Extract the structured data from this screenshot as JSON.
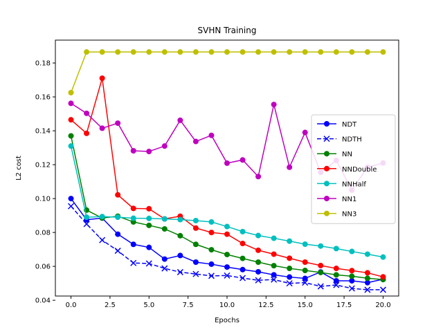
{
  "chart_data": {
    "type": "line",
    "title": "SVHN Training",
    "xlabel": "Epochs",
    "ylabel": "L2 cost",
    "xlim": [
      -1,
      21
    ],
    "ylim": [
      0.0425,
      0.1935
    ],
    "xticks": [
      0,
      2.5,
      5,
      7.5,
      10,
      12.5,
      15,
      17.5,
      20
    ],
    "xtick_labels": [
      "0.0",
      "2.5",
      "5.0",
      "7.5",
      "10.0",
      "12.5",
      "15.0",
      "17.5",
      "20.0"
    ],
    "yticks": [
      0.04,
      0.06,
      0.08,
      0.1,
      0.12,
      0.14,
      0.16,
      0.18
    ],
    "ytick_labels": [
      "0.04",
      "0.06",
      "0.08",
      "0.10",
      "0.12",
      "0.14",
      "0.16",
      "0.18"
    ],
    "legend_position": "center-right",
    "grid": false,
    "x": [
      0,
      1,
      2,
      3,
      4,
      5,
      6,
      7,
      8,
      9,
      10,
      11,
      12,
      13,
      14,
      15,
      16,
      17,
      18,
      19,
      20
    ],
    "series": [
      {
        "name": "NDT",
        "color": "#0000ff",
        "marker": "circle",
        "dashed": false,
        "values": [
          0.1,
          0.0875,
          0.0885,
          0.079,
          0.073,
          0.0712,
          0.0643,
          0.0664,
          0.0625,
          0.0613,
          0.0596,
          0.0581,
          0.0568,
          0.055,
          0.0537,
          0.0529,
          0.0567,
          0.0515,
          0.0515,
          0.0504,
          0.0524
        ]
      },
      {
        "name": "NDTH",
        "color": "#0000ff",
        "marker": "x",
        "dashed": true,
        "values": [
          0.0955,
          0.085,
          0.0755,
          0.0692,
          0.062,
          0.0617,
          0.0588,
          0.0566,
          0.0555,
          0.0544,
          0.0546,
          0.0531,
          0.0518,
          0.0522,
          0.05,
          0.0504,
          0.0482,
          0.049,
          0.047,
          0.0462,
          0.0462
        ]
      },
      {
        "name": "NN",
        "color": "#008000",
        "marker": "circle",
        "dashed": false,
        "values": [
          0.137,
          0.0932,
          0.0885,
          0.0896,
          0.0862,
          0.0842,
          0.0821,
          0.0781,
          0.073,
          0.0698,
          0.067,
          0.0647,
          0.0625,
          0.0604,
          0.0588,
          0.0576,
          0.0564,
          0.055,
          0.0542,
          0.053,
          0.0522
        ]
      },
      {
        "name": "NNDouble",
        "color": "#ff0000",
        "marker": "circle",
        "dashed": false,
        "values": [
          0.1465,
          0.1385,
          0.171,
          0.1022,
          0.0942,
          0.094,
          0.088,
          0.0896,
          0.0826,
          0.08,
          0.079,
          0.0735,
          0.0695,
          0.0672,
          0.0648,
          0.0625,
          0.0605,
          0.0588,
          0.0575,
          0.0562,
          0.0538
        ]
      },
      {
        "name": "NNHalf",
        "color": "#00bfbf",
        "marker": "circle",
        "dashed": false,
        "values": [
          0.131,
          0.089,
          0.0894,
          0.089,
          0.0884,
          0.0883,
          0.088,
          0.0876,
          0.087,
          0.0862,
          0.0835,
          0.0805,
          0.0782,
          0.0766,
          0.0749,
          0.0731,
          0.072,
          0.0705,
          0.0688,
          0.0672,
          0.0655
        ]
      },
      {
        "name": "NN1",
        "color": "#bf00bf",
        "marker": "circle",
        "dashed": false,
        "values": [
          0.1562,
          0.1503,
          0.1415,
          0.1445,
          0.1282,
          0.1278,
          0.131,
          0.1462,
          0.1337,
          0.1373,
          0.1209,
          0.1228,
          0.113,
          0.1555,
          0.1185,
          0.139,
          0.1155,
          0.1225,
          0.105,
          0.1185,
          0.121
        ]
      },
      {
        "name": "NN3",
        "color": "#bfbf00",
        "marker": "circle",
        "dashed": false,
        "values": [
          0.1625,
          0.1865,
          0.1865,
          0.1865,
          0.1865,
          0.1865,
          0.1865,
          0.1865,
          0.1865,
          0.1865,
          0.1865,
          0.1865,
          0.1865,
          0.1865,
          0.1865,
          0.1865,
          0.1865,
          0.1865,
          0.1865,
          0.1865,
          0.1865
        ]
      }
    ]
  }
}
